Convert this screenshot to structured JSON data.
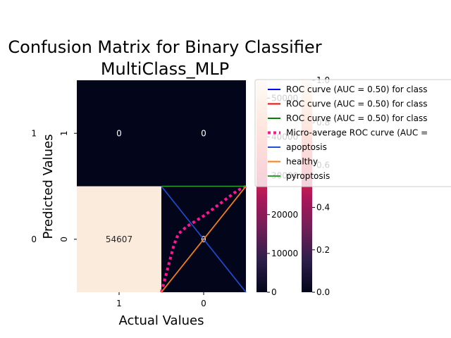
{
  "chart_data": [
    {
      "type": "heatmap",
      "title_line1": "Confusion Matrix for Binary Classifier",
      "title_line2": "MultiClass_MLP",
      "xlabel": "Actual Values",
      "ylabel": "Predicted Values",
      "x_categories": [
        "1",
        "0"
      ],
      "y_categories": [
        "1",
        "0"
      ],
      "values": [
        [
          0,
          0
        ],
        [
          54607,
          0
        ]
      ],
      "value_labels": [
        [
          "0",
          "0"
        ],
        [
          "54607",
          "0"
        ]
      ],
      "colorbar": {
        "min": 0,
        "max": 54607,
        "ticks": [
          "0",
          "10000",
          "20000",
          "30000",
          "40000",
          "50000"
        ]
      },
      "colors": {
        "low": "#03051a",
        "high": "#faebdd",
        "text_on_dark": "#ffffff",
        "text_on_light": "#262626"
      }
    },
    {
      "type": "line",
      "x": [
        0,
        1
      ],
      "xlim": [
        0,
        1
      ],
      "ylim": [
        0,
        1
      ],
      "series": [
        {
          "name": "ROC curve (AUC = 0.50) for class",
          "color": "#0000ff",
          "points": [
            [
              0,
              0
            ],
            [
              1,
              1
            ]
          ]
        },
        {
          "name": "ROC curve (AUC = 0.50) for class",
          "color": "#ff0000",
          "points": [
            [
              0,
              0
            ],
            [
              1,
              1
            ]
          ]
        },
        {
          "name": "ROC curve (AUC = 0.50) for class",
          "color": "#008000",
          "points": [
            [
              0,
              0
            ],
            [
              1,
              1
            ]
          ]
        },
        {
          "name": "Micro-average ROC curve (AUC =",
          "color": "#ff1493",
          "dotted": true,
          "points": [
            [
              0,
              0
            ],
            [
              0.05,
              0.15
            ],
            [
              0.1,
              0.3
            ],
            [
              0.15,
              0.45
            ],
            [
              0.2,
              0.55
            ],
            [
              0.3,
              0.62
            ],
            [
              0.4,
              0.67
            ],
            [
              0.5,
              0.72
            ],
            [
              0.6,
              0.78
            ],
            [
              0.7,
              0.84
            ],
            [
              0.8,
              0.9
            ],
            [
              0.9,
              0.96
            ],
            [
              1,
              1
            ]
          ]
        },
        {
          "name": "apoptosis",
          "color": "#1f4fd9",
          "points": [
            [
              0,
              1
            ],
            [
              1,
              0
            ]
          ]
        },
        {
          "name": "healthy",
          "color": "#ff7f0e",
          "points": [
            [
              0,
              0
            ],
            [
              1,
              1
            ]
          ]
        },
        {
          "name": "pyroptosis",
          "color": "#2ca02c",
          "points": [
            [
              0,
              1
            ],
            [
              1,
              1
            ]
          ]
        }
      ],
      "colorbar": {
        "min": 0,
        "max": 1,
        "ticks": [
          "0.0",
          "0.2",
          "0.4",
          "0.6",
          "0.8",
          "1.0"
        ]
      }
    }
  ]
}
